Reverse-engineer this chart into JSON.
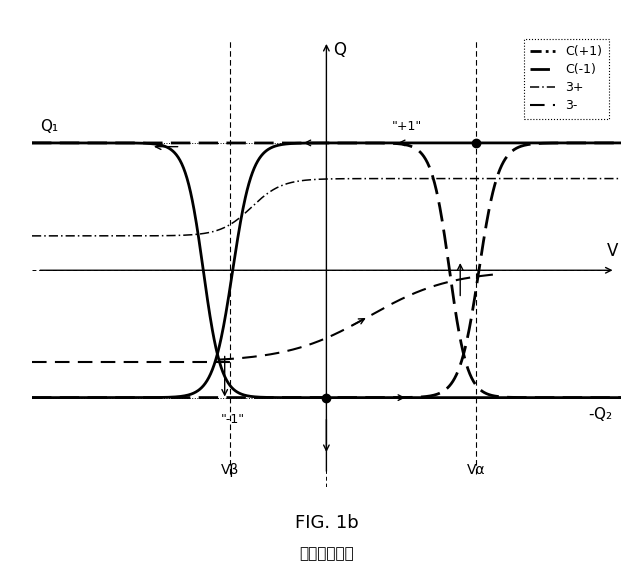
{
  "title": "FIG. 1b",
  "subtitle": "（従来技術）",
  "bg_color": "#ffffff",
  "xlim": [
    -5.5,
    5.5
  ],
  "ylim": [
    -1.7,
    1.9
  ],
  "Q1_y": 1.0,
  "Q2_y": -1.0,
  "V_alpha": 2.8,
  "V_beta": -1.8,
  "label_Q1": "Q₁",
  "label_Q2": "-Q₂",
  "label_Va": "Vα",
  "label_Vb": "Vβ",
  "label_plus1": "\"+1\"",
  "label_minus1": "\"-1\""
}
